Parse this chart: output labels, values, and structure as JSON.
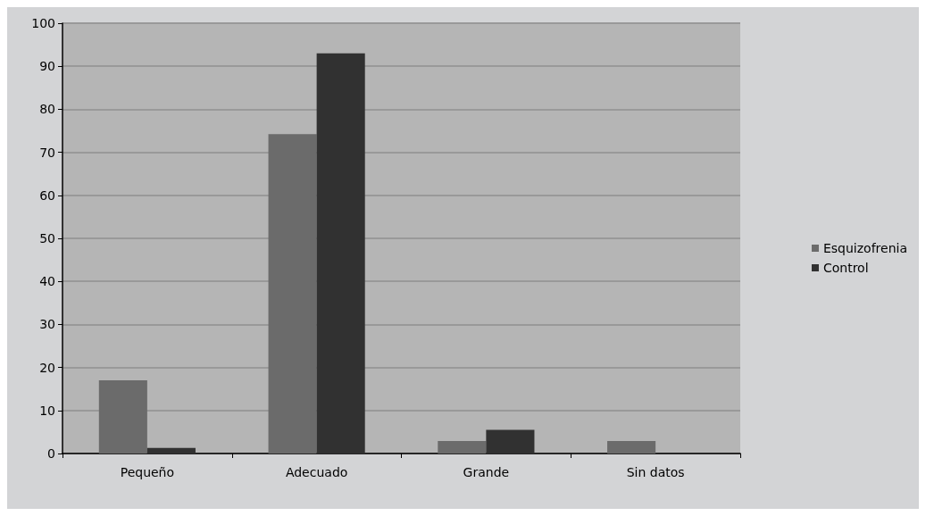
{
  "chart_data": {
    "type": "bar",
    "categories": [
      "Pequeño",
      "Adecuado",
      "Grande",
      "Sin datos"
    ],
    "series": [
      {
        "name": "Esquizofrenia",
        "color": "#6b6b6b",
        "values": [
          17,
          74.2,
          2.9,
          2.9
        ]
      },
      {
        "name": "Control",
        "color": "#313131",
        "values": [
          1.3,
          93,
          5.5,
          0
        ]
      }
    ],
    "ylim": [
      0,
      100
    ],
    "yticks": [
      0,
      10,
      20,
      30,
      40,
      50,
      60,
      70,
      80,
      90,
      100
    ],
    "grid": "y",
    "legend": "right"
  }
}
